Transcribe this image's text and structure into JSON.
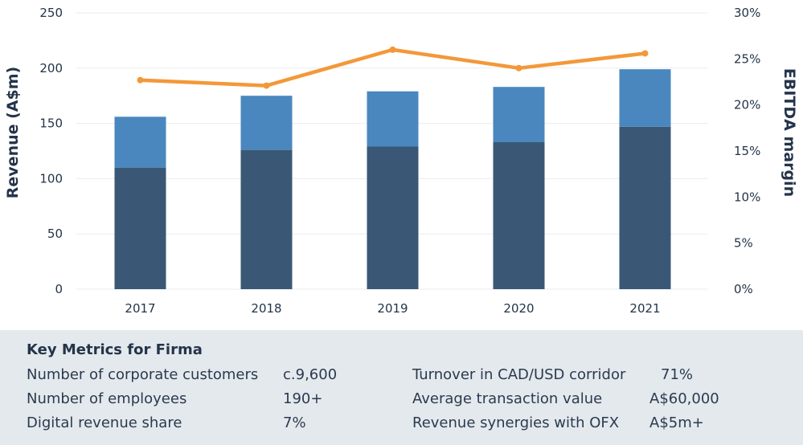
{
  "chart_data": {
    "type": "bar",
    "stacked": true,
    "categories": [
      "2017",
      "2018",
      "2019",
      "2020",
      "2021"
    ],
    "series": [
      {
        "values": [
          110,
          126,
          129,
          133,
          147
        ],
        "color": "#3a5875",
        "axis": "left"
      },
      {
        "values": [
          46,
          49,
          50,
          50,
          52
        ],
        "color": "#4a87bf",
        "axis": "left"
      },
      {
        "type": "line",
        "values": [
          22.7,
          22.1,
          26.0,
          24.0,
          25.6
        ],
        "color": "#f39839",
        "axis": "right"
      }
    ],
    "ylabel": "Revenue (A$m)",
    "y2label": "EBITDA margin",
    "ylim": [
      0,
      250
    ],
    "yticks": [
      "0",
      "50",
      "100",
      "150",
      "200",
      "250"
    ],
    "y2lim": [
      0,
      30
    ],
    "y2ticks": [
      "0%",
      "5%",
      "10%",
      "15%",
      "20%",
      "25%",
      "30%"
    ],
    "grid": true
  },
  "metrics": {
    "title": "Key Metrics for Firma",
    "left": [
      {
        "label": "Number of corporate customers",
        "value": "c.9,600"
      },
      {
        "label": "Number of employees",
        "value": "190+"
      },
      {
        "label": "Digital revenue share",
        "value": "7%"
      }
    ],
    "right": [
      {
        "label": "Turnover in CAD/USD corridor",
        "value": "71%"
      },
      {
        "label": "Average transaction value",
        "value": "A$60,000"
      },
      {
        "label": "Revenue synergies with OFX",
        "value": "A$5m+"
      }
    ]
  }
}
